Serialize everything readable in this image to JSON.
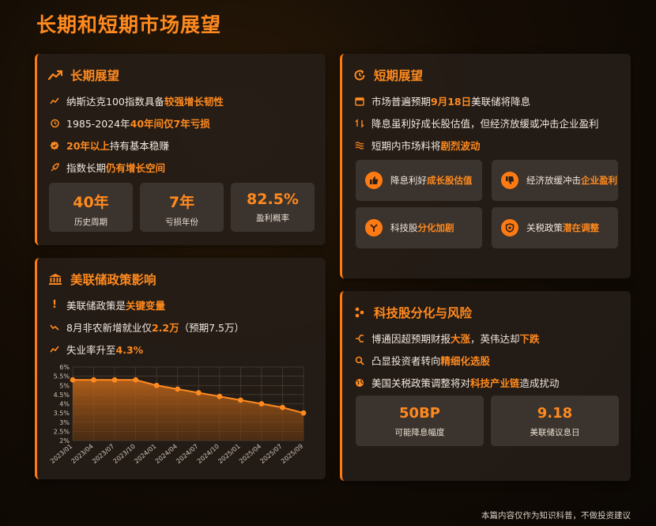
{
  "page": {
    "title": "长期和短期市场展望",
    "footer": "本篇内容仅作为知识科普，不做投资建议"
  },
  "long_term": {
    "title": "长期展望",
    "line1": {
      "pre": "纳斯达克100指数具备",
      "hl": "较强增长韧性"
    },
    "line2": {
      "pre": "1985-2024年",
      "hl": "40年间仅7年亏损"
    },
    "line3": {
      "hl": "20年以上",
      "post": "持有基本稳赚"
    },
    "line4": {
      "pre": "指数长期",
      "hl": "仍有增长空间"
    },
    "stats": [
      {
        "value": "40年",
        "label": "历史周期"
      },
      {
        "value": "7年",
        "label": "亏损年份"
      },
      {
        "value": "82.5%",
        "label": "盈利概率"
      }
    ]
  },
  "fed": {
    "title": "美联储政策影响",
    "line1": {
      "pre": "美联储政策是",
      "hl": "关键变量"
    },
    "line2": {
      "pre": "8月非农新增就业仅",
      "hl": "2.2万",
      "post": "（预期7.5万）"
    },
    "line3": {
      "pre": "失业率升至",
      "hl": "4.3%"
    }
  },
  "short_term": {
    "title": "短期展望",
    "line1": {
      "pre": "市场普遍预期",
      "hl": "9月18日",
      "post": "美联储将降息"
    },
    "line2": {
      "pre": "降息虽利好成长股估值，但经济放缓或冲击企业盈利"
    },
    "line3": {
      "pre": "短期内市场料将",
      "hl": "剧烈波动"
    },
    "tiles": [
      {
        "pre": "降息利好",
        "hl": "成长股估值",
        "icon": "thumbs-up-icon"
      },
      {
        "pre": "经济放缓冲击",
        "hl": "企业盈利",
        "icon": "thumbs-down-icon"
      },
      {
        "pre": "科技股",
        "hl": "分化加剧",
        "icon": "fork-icon"
      },
      {
        "pre": "关税政策",
        "hl": "潜在调整",
        "icon": "shield-icon"
      }
    ]
  },
  "tech": {
    "title": "科技股分化与风险",
    "line1": {
      "pre": "博通因超预期财报",
      "hl": "大涨",
      "mid": "，英伟达却",
      "hl2": "下跌"
    },
    "line2": {
      "pre": "凸显投资者转向",
      "hl": "精细化选股"
    },
    "line3": {
      "pre": "美国关税政策调整将对",
      "hl": "科技产业链",
      "post": "造成扰动"
    },
    "stats": [
      {
        "value": "50BP",
        "label": "可能降息幅度"
      },
      {
        "value": "9.18",
        "label": "美联储议息日"
      }
    ]
  },
  "colors": {
    "accent": "#ff7a12",
    "text": "#f1e9df",
    "card": "#261e18"
  },
  "chart_data": {
    "type": "area",
    "title": "",
    "xlabel": "",
    "ylabel": "",
    "categories": [
      "2023/01",
      "2023/04",
      "2023/07",
      "2023/10",
      "2024/01",
      "2024/04",
      "2024/07",
      "2024/10",
      "2025/01",
      "2025/04",
      "2025/07",
      "2025/09"
    ],
    "series": [
      {
        "values": [
          5.3,
          5.3,
          5.3,
          5.3,
          5.0,
          4.8,
          4.6,
          4.4,
          4.2,
          4.0,
          3.8,
          3.5
        ]
      }
    ],
    "yticks": [
      "2%",
      "2.5%",
      "3%",
      "3.5%",
      "4%",
      "4.5%",
      "5%",
      "5.5%",
      "6%"
    ],
    "ylim": [
      2,
      6
    ],
    "grid": true
  }
}
